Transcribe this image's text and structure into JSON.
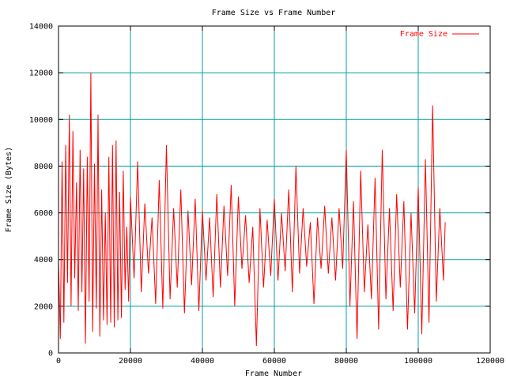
{
  "chart_data": {
    "type": "line",
    "title": "Frame Size vs Frame Number",
    "xlabel": "Frame Number",
    "ylabel": "Frame Size (Bytes)",
    "xlim": [
      0,
      120000
    ],
    "ylim": [
      0,
      14000
    ],
    "x_ticks": [
      0,
      20000,
      40000,
      60000,
      80000,
      100000,
      120000
    ],
    "y_ticks": [
      0,
      2000,
      4000,
      6000,
      8000,
      10000,
      12000,
      14000
    ],
    "grid": true,
    "legend_position": "top-right",
    "series": [
      {
        "name": "Frame Size",
        "color": "#ff0000",
        "x": [
          0,
          500,
          1000,
          1500,
          2000,
          2500,
          3000,
          3500,
          4000,
          4500,
          5000,
          5500,
          6000,
          6500,
          7000,
          7500,
          8000,
          8500,
          9000,
          9500,
          10000,
          10500,
          11000,
          11500,
          12000,
          12500,
          13000,
          13500,
          14000,
          14500,
          15000,
          15500,
          16000,
          16500,
          17000,
          17500,
          18000,
          18500,
          19000,
          19500,
          20000,
          21000,
          22000,
          23000,
          24000,
          25000,
          26000,
          27000,
          28000,
          29000,
          30000,
          31000,
          32000,
          33000,
          34000,
          35000,
          36000,
          37000,
          38000,
          39000,
          40000,
          41000,
          42000,
          43000,
          44000,
          45000,
          46000,
          47000,
          48000,
          49000,
          50000,
          51000,
          52000,
          53000,
          54000,
          55000,
          56000,
          57000,
          58000,
          59000,
          60000,
          61000,
          62000,
          63000,
          64000,
          65000,
          66000,
          67000,
          68000,
          69000,
          70000,
          71000,
          72000,
          73000,
          74000,
          75000,
          76000,
          77000,
          78000,
          79000,
          80000,
          81000,
          82000,
          83000,
          84000,
          85000,
          86000,
          87000,
          88000,
          89000,
          90000,
          91000,
          92000,
          93000,
          94000,
          95000,
          96000,
          97000,
          98000,
          99000,
          100000,
          101000,
          102000,
          103000,
          104000,
          105000,
          106000,
          107000,
          107500
        ],
        "y": [
          4000,
          600,
          8200,
          1300,
          8900,
          3000,
          10200,
          2000,
          9500,
          3200,
          7300,
          1800,
          8700,
          2600,
          7900,
          400,
          8400,
          2200,
          12000,
          900,
          8100,
          1900,
          10200,
          700,
          7000,
          1400,
          6000,
          1200,
          8400,
          1300,
          8900,
          1100,
          9100,
          1400,
          6900,
          1500,
          7800,
          2700,
          5400,
          2200,
          6700,
          3200,
          8200,
          2600,
          6400,
          3400,
          5800,
          2100,
          7400,
          1900,
          8900,
          2300,
          6200,
          2800,
          7000,
          1700,
          6100,
          2900,
          6600,
          1800,
          6100,
          3100,
          5800,
          2400,
          6800,
          2800,
          6300,
          3300,
          7200,
          2000,
          6700,
          3600,
          5900,
          3000,
          5400,
          300,
          6200,
          2800,
          5700,
          3300,
          6600,
          3100,
          6000,
          3500,
          7000,
          2600,
          8000,
          3400,
          6200,
          3700,
          5600,
          2100,
          5800,
          3600,
          6300,
          3400,
          5800,
          3100,
          6200,
          3600,
          8700,
          2000,
          6500,
          600,
          7800,
          2600,
          5500,
          2300,
          7500,
          1000,
          8700,
          2300,
          6200,
          1800,
          6800,
          2800,
          6500,
          1000,
          6000,
          1700,
          7100,
          800,
          8300,
          1300,
          10600,
          2200,
          6200,
          3100,
          5600
        ]
      }
    ]
  }
}
